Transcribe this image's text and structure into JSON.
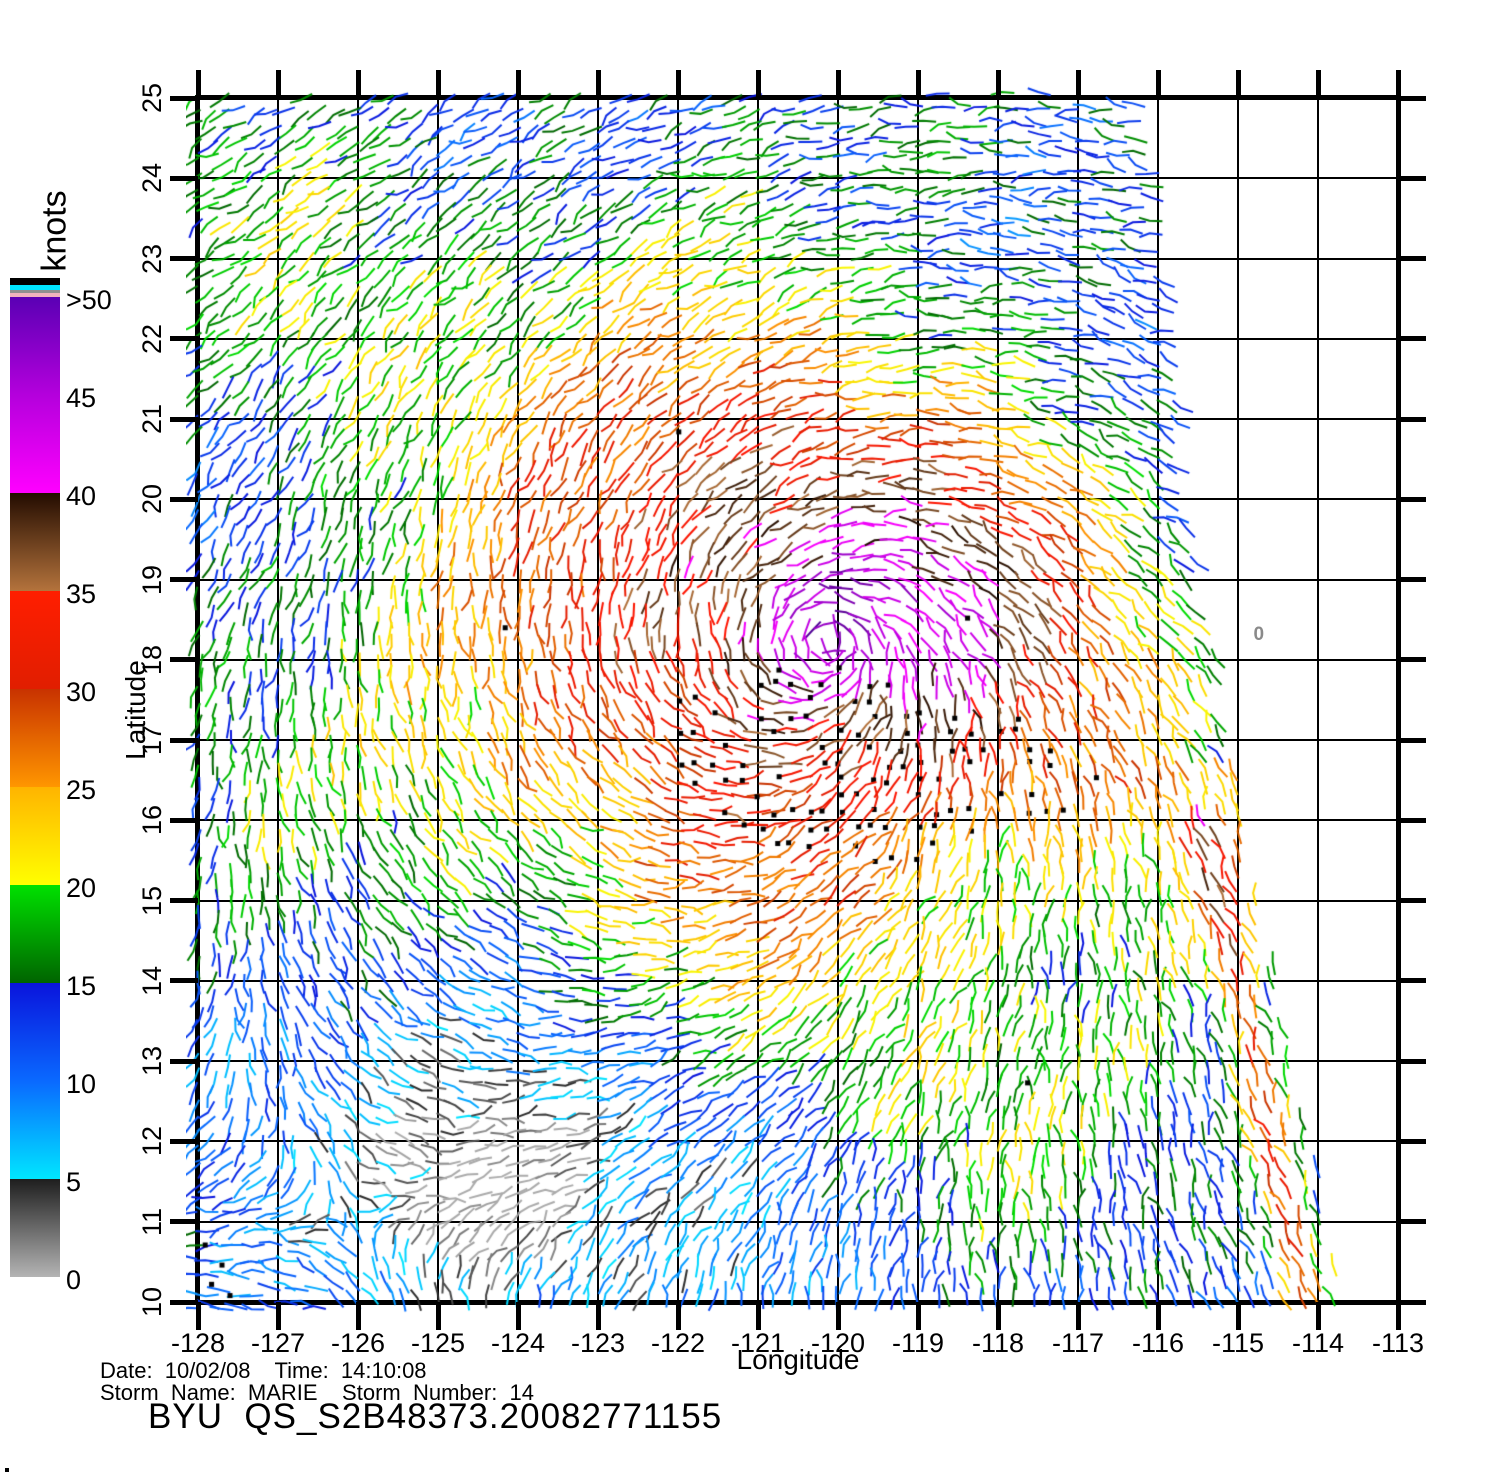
{
  "axes": {
    "x_title": "Longitude",
    "y_title": "Latitude",
    "x_tick_labels": [
      "-128",
      "-127",
      "-126",
      "-125",
      "-124",
      "-123",
      "-122",
      "-121",
      "-120",
      "-119",
      "-118",
      "-117",
      "-116",
      "-115",
      "-114",
      "-113"
    ],
    "y_tick_labels": [
      "25",
      "24",
      "23",
      "22",
      "21",
      "20",
      "19",
      "18",
      "17",
      "16",
      "15",
      "14",
      "13",
      "12",
      "11",
      "10"
    ],
    "x_range": [
      -128,
      -113
    ],
    "y_range": [
      10,
      25
    ],
    "grid": "on"
  },
  "colorbar": {
    "title": "knots",
    "tick_labels": [
      ">50",
      "45",
      "40",
      "35",
      "30",
      "25",
      "20",
      "15",
      "10",
      "5",
      "0"
    ],
    "gradient_stops": [
      [
        0,
        "#5a00b4"
      ],
      [
        10,
        "#b400dc"
      ],
      [
        20,
        "#ff00ff"
      ],
      [
        20,
        "#230c00"
      ],
      [
        30,
        "#b4733c"
      ],
      [
        30,
        "#ff1e00"
      ],
      [
        40,
        "#e11e00"
      ],
      [
        40,
        "#c83200"
      ],
      [
        50,
        "#ff9600"
      ],
      [
        50,
        "#ffb400"
      ],
      [
        60,
        "#ffff00"
      ],
      [
        60,
        "#00e100"
      ],
      [
        70,
        "#006400"
      ],
      [
        70,
        "#0a14dc"
      ],
      [
        80,
        "#0a69ff"
      ],
      [
        90,
        "#00e6ff"
      ],
      [
        90,
        "#1e1e1e"
      ],
      [
        100,
        "#b4b4b4"
      ]
    ],
    "top_stripes": [
      [
        "#000000",
        7
      ],
      [
        "#00e5ff",
        5
      ],
      [
        "#909090",
        3
      ],
      [
        "#f0b4be",
        4
      ]
    ]
  },
  "footer": {
    "line1": "Date:  10/02/08    Time:  14:10:08",
    "line2": "Storm  Name:  MARIE    Storm  Number:  14",
    "line3": "BYU  QS_S2B48373.20082771155"
  },
  "chart_data": {
    "type": "vector-field",
    "title": "BYU  QS_S2B48373.20082771155",
    "units": "knots",
    "xlabel": "Longitude",
    "ylabel": "Latitude",
    "xlim": [
      -128,
      -113
    ],
    "ylim": [
      10,
      25
    ],
    "storm": {
      "name": "MARIE",
      "number": 14,
      "center_lon": -120.1,
      "center_lat": 18.3,
      "peak_knots": 47,
      "rotation": "counterclockwise"
    },
    "background_knots": 13,
    "grid_spacing_px": 16,
    "swath_right_edge_latlon": [
      [
        25.15,
        -116.1
      ],
      [
        23.73,
        -115.88
      ],
      [
        22.11,
        -115.66
      ],
      [
        20.24,
        -115.6
      ],
      [
        19.24,
        -115.38
      ],
      [
        18.0,
        -115.25
      ],
      [
        16.75,
        -115.08
      ],
      [
        15.51,
        -114.88
      ],
      [
        14.26,
        -114.58
      ],
      [
        13.02,
        -114.33
      ],
      [
        11.77,
        -114.04
      ],
      [
        9.9,
        -113.63
      ]
    ],
    "low_wind_zone": {
      "lon": -124.5,
      "lat": 11.2,
      "min_knots": 2
    },
    "edge_jet": {
      "lat_range": [
        10,
        16.5
      ],
      "peak_knots": 29
    },
    "rain_flag_cluster": {
      "lon_range": [
        -121.9,
        -118.3
      ],
      "lat_range": [
        15.7,
        17.9
      ]
    },
    "isolated_rain_flags_latlon": [
      [
        18.4,
        -124.16
      ],
      [
        20.84,
        -121.99
      ],
      [
        18.52,
        -118.38
      ],
      [
        12.73,
        -117.63
      ],
      [
        10.71,
        -127.91
      ],
      [
        10.46,
        -127.7
      ],
      [
        10.22,
        -127.83
      ],
      [
        10.08,
        -127.6
      ]
    ],
    "contour_label": {
      "text": "0",
      "lon": -114.74,
      "lat": 18.31
    },
    "speed_color_classes_knots": {
      "0-5": "gray",
      "5-10": "cyan",
      "10-15": "blue",
      "15-20": "green",
      "20-25": "yellow",
      "25-30": "orange",
      "30-35": "red",
      "35-40": "brown",
      "40-45": "magenta",
      "45-50+": "purple"
    }
  }
}
